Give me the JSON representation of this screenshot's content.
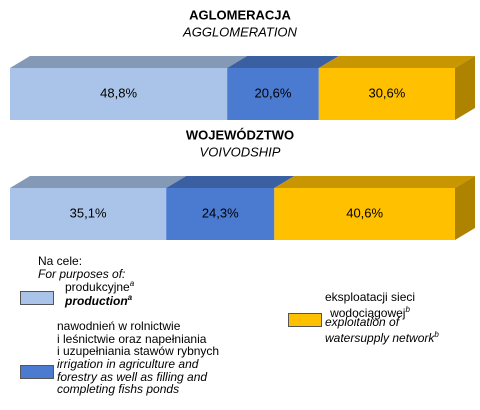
{
  "chart_data": {
    "type": "bar",
    "categories": [
      "AGLOMERACJA",
      "WOJEWÓDZTWO"
    ],
    "category_subtitles": [
      "AGGLOMERATION",
      "VOIVODSHIP"
    ],
    "xlim": [
      0,
      100
    ],
    "legend_title": [
      "Na cele:",
      "For purposes of:"
    ],
    "series": [
      {
        "name": "produkcyjne",
        "name_en": "production",
        "footnote": "a",
        "color": "#a9c4e8",
        "values": [
          48.8,
          35.1
        ],
        "value_labels": [
          "48,8%",
          "35,1%"
        ]
      },
      {
        "name": "nawodnień w rolnictwie\ni leśnictwie oraz napełniania\ni uzupełniania   stawów rybnych",
        "name_en": "irrigation in agriculture and\nforestry as well as filling and\ncompleting fishs ponds",
        "color": "#4a7bd0",
        "values": [
          20.6,
          24.3
        ],
        "value_labels": [
          "20,6%",
          "24,3%"
        ]
      },
      {
        "name": "eksploatacji sieci\nwodociągowej",
        "name_en": "exploitation of\nwatersupply network",
        "footnote": "b",
        "color": "#ffc000",
        "values": [
          30.6,
          40.6
        ],
        "value_labels": [
          "30,6%",
          "40,6%"
        ]
      }
    ]
  }
}
